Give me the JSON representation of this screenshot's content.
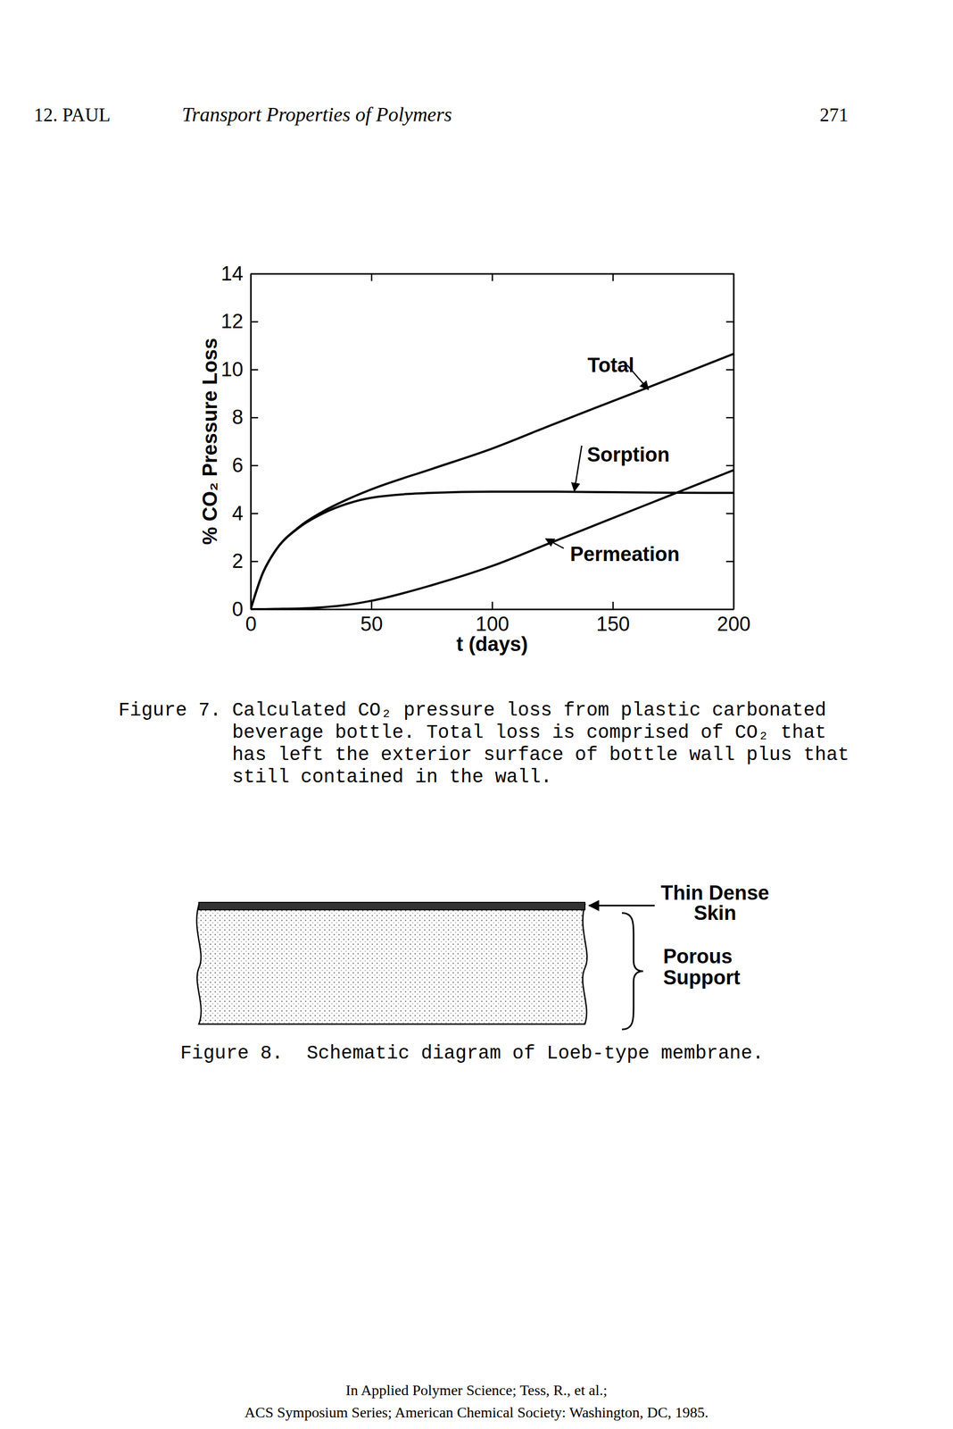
{
  "header": {
    "chapter": "12. PAUL",
    "title": "Transport Properties of Polymers",
    "page": "271"
  },
  "chart_data": {
    "type": "line",
    "x_label": "t (days)",
    "y_label": "% CO₂ Pressure Loss",
    "x": [
      0,
      5,
      10,
      20,
      30,
      40,
      50,
      75,
      100,
      125,
      150,
      175,
      200
    ],
    "series": [
      {
        "name": "Total",
        "color": "#000000",
        "values": [
          0,
          1.5,
          2.41,
          3.43,
          4.08,
          4.58,
          5.0,
          5.85,
          6.7,
          7.7,
          8.68,
          9.66,
          10.65
        ]
      },
      {
        "name": "Sorption",
        "color": "#000000",
        "values": [
          0,
          1.5,
          2.4,
          3.4,
          4.0,
          4.4,
          4.65,
          4.85,
          4.9,
          4.9,
          4.88,
          4.86,
          4.85
        ]
      },
      {
        "name": "Permeation",
        "color": "#000000",
        "values": [
          0,
          0,
          0.01,
          0.03,
          0.08,
          0.18,
          0.35,
          1.0,
          1.8,
          2.8,
          3.8,
          4.8,
          5.8
        ]
      }
    ],
    "xlim": [
      0,
      200
    ],
    "ylim": [
      0,
      14
    ],
    "xticks": [
      0,
      50,
      100,
      150,
      200
    ],
    "yticks": [
      0,
      2,
      4,
      6,
      8,
      10,
      12,
      14
    ],
    "grid": false
  },
  "figure7_caption": {
    "label": "Figure 7.",
    "lines": [
      "Calculated CO₂ pressure loss from plastic carbonated",
      "beverage bottle. Total loss is comprised of CO₂ that",
      "has left the exterior surface of bottle wall plus that",
      "still contained in the wall."
    ]
  },
  "figure8": {
    "skin_label": [
      "Thin Dense",
      "Skin"
    ],
    "support_label": [
      "Porous",
      "Support"
    ],
    "caption": {
      "label": "Figure 8.",
      "text": "Schematic diagram of Loeb-type membrane."
    }
  },
  "footer": {
    "lines": [
      "In Applied Polymer Science; Tess, R., et al.;",
      "ACS Symposium Series; American Chemical Society: Washington, DC, 1985."
    ]
  }
}
